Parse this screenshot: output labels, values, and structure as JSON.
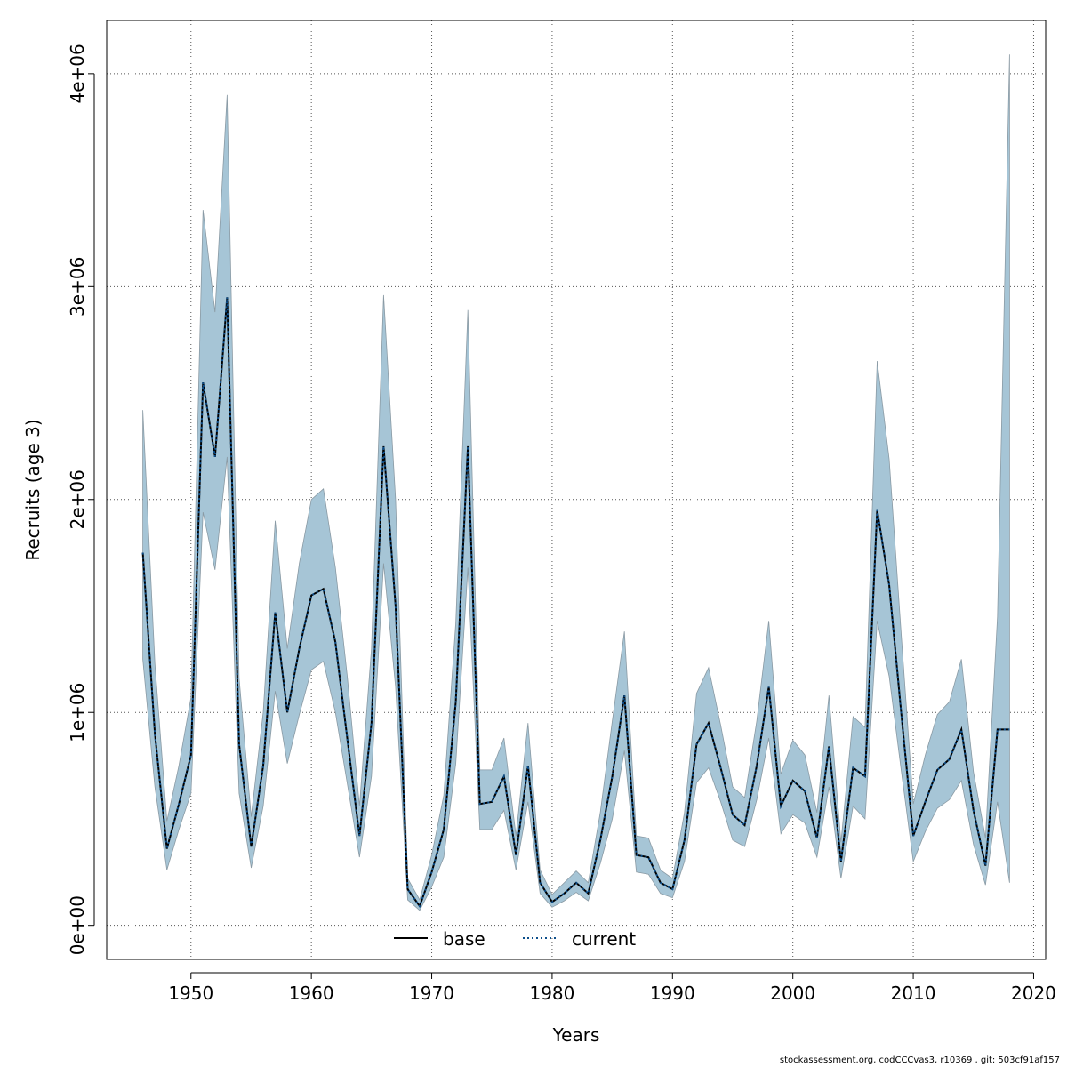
{
  "chart_data": {
    "type": "area",
    "xlabel": "Years",
    "ylabel": "Recruits (age 3)",
    "xlim": [
      1943,
      2021
    ],
    "ylim": [
      -160000,
      4250000
    ],
    "x_ticks": [
      1950,
      1960,
      1970,
      1980,
      1990,
      2000,
      2010,
      2020
    ],
    "x_tick_labels": [
      "1950",
      "1960",
      "1970",
      "1980",
      "1990",
      "2000",
      "2010",
      "2020"
    ],
    "y_ticks": [
      0,
      1000000,
      2000000,
      3000000,
      4000000
    ],
    "y_tick_labels": [
      "0e+00",
      "1e+06",
      "2e+06",
      "3e+06",
      "4e+06"
    ],
    "grid": true,
    "legend_position": "bottom-center",
    "years": [
      1946,
      1947,
      1948,
      1949,
      1950,
      1951,
      1952,
      1953,
      1954,
      1955,
      1956,
      1957,
      1958,
      1959,
      1960,
      1961,
      1962,
      1963,
      1964,
      1965,
      1966,
      1967,
      1968,
      1969,
      1970,
      1971,
      1972,
      1973,
      1974,
      1975,
      1976,
      1977,
      1978,
      1979,
      1980,
      1981,
      1982,
      1983,
      1984,
      1985,
      1986,
      1987,
      1988,
      1989,
      1990,
      1991,
      1992,
      1993,
      1994,
      1995,
      1996,
      1997,
      1998,
      1999,
      2000,
      2001,
      2002,
      2003,
      2004,
      2005,
      2006,
      2007,
      2008,
      2009,
      2010,
      2011,
      2012,
      2013,
      2014,
      2015,
      2016,
      2017,
      2018
    ],
    "series": [
      {
        "name": "base",
        "style": "solid",
        "color": "#000000",
        "values": [
          1750000,
          900000,
          360000,
          570000,
          800000,
          2550000,
          2200000,
          2950000,
          850000,
          370000,
          750000,
          1470000,
          1000000,
          1300000,
          1550000,
          1580000,
          1330000,
          870000,
          420000,
          950000,
          2250000,
          1500000,
          170000,
          90000,
          250000,
          450000,
          1050000,
          2250000,
          570000,
          580000,
          700000,
          330000,
          750000,
          200000,
          110000,
          150000,
          200000,
          150000,
          400000,
          700000,
          1080000,
          330000,
          320000,
          200000,
          170000,
          400000,
          850000,
          950000,
          740000,
          520000,
          470000,
          750000,
          1120000,
          560000,
          680000,
          630000,
          410000,
          840000,
          300000,
          740000,
          700000,
          1950000,
          1600000,
          1000000,
          420000,
          580000,
          730000,
          780000,
          920000,
          540000,
          280000,
          920000,
          920000
        ]
      },
      {
        "name": "current",
        "style": "dotted",
        "color": "#0d4f8b",
        "values": [
          1750000,
          900000,
          360000,
          570000,
          800000,
          2550000,
          2200000,
          2950000,
          850000,
          370000,
          750000,
          1470000,
          1000000,
          1300000,
          1550000,
          1580000,
          1330000,
          870000,
          420000,
          950000,
          2250000,
          1500000,
          170000,
          90000,
          250000,
          450000,
          1050000,
          2250000,
          570000,
          580000,
          700000,
          330000,
          750000,
          200000,
          110000,
          150000,
          200000,
          150000,
          400000,
          700000,
          1080000,
          330000,
          320000,
          200000,
          170000,
          400000,
          850000,
          950000,
          740000,
          520000,
          470000,
          750000,
          1120000,
          560000,
          680000,
          630000,
          410000,
          840000,
          300000,
          740000,
          700000,
          1950000,
          1600000,
          1000000,
          420000,
          580000,
          730000,
          780000,
          920000,
          540000,
          280000,
          920000,
          920000
        ]
      }
    ],
    "band": {
      "color": "#a6c5d6",
      "lower": [
        1250000,
        650000,
        260000,
        450000,
        620000,
        1940000,
        1670000,
        2200000,
        620000,
        270000,
        560000,
        1100000,
        760000,
        990000,
        1200000,
        1240000,
        1000000,
        660000,
        320000,
        700000,
        1700000,
        1120000,
        120000,
        70000,
        180000,
        320000,
        760000,
        1680000,
        450000,
        450000,
        540000,
        260000,
        580000,
        150000,
        85000,
        115000,
        155000,
        115000,
        290000,
        500000,
        820000,
        250000,
        240000,
        150000,
        130000,
        300000,
        670000,
        740000,
        580000,
        400000,
        370000,
        590000,
        880000,
        430000,
        520000,
        480000,
        320000,
        650000,
        220000,
        560000,
        500000,
        1430000,
        1170000,
        730000,
        300000,
        440000,
        550000,
        590000,
        680000,
        380000,
        190000,
        580000,
        200000
      ],
      "upper": [
        2420000,
        1230000,
        490000,
        750000,
        1070000,
        3360000,
        2880000,
        3900000,
        1160000,
        510000,
        1000000,
        1900000,
        1300000,
        1700000,
        2000000,
        2050000,
        1680000,
        1160000,
        560000,
        1300000,
        2960000,
        2000000,
        220000,
        120000,
        330000,
        610000,
        1420000,
        2890000,
        730000,
        730000,
        880000,
        420000,
        950000,
        260000,
        145000,
        200000,
        255000,
        200000,
        530000,
        960000,
        1380000,
        420000,
        410000,
        260000,
        220000,
        530000,
        1090000,
        1210000,
        940000,
        650000,
        600000,
        960000,
        1430000,
        710000,
        870000,
        800000,
        530000,
        1080000,
        390000,
        980000,
        930000,
        2650000,
        2190000,
        1370000,
        570000,
        800000,
        990000,
        1050000,
        1250000,
        720000,
        410000,
        1450000,
        4090000
      ]
    }
  },
  "legend": {
    "items": [
      {
        "label": "base"
      },
      {
        "label": "current"
      }
    ]
  },
  "footer": {
    "text": "stockassessment.org, codCCCvas3, r10369 , git: 503cf91af157"
  }
}
